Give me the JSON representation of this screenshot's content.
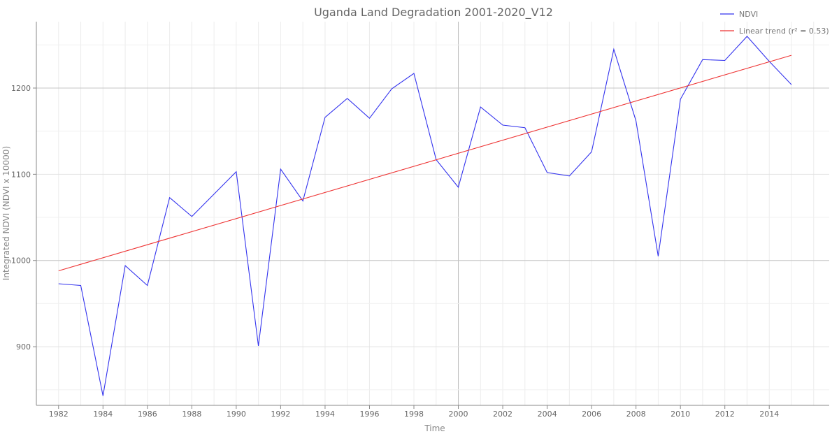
{
  "chart_data": {
    "type": "line",
    "title": "Uganda Land Degradation 2001-2020_V12",
    "xlabel": "Time",
    "ylabel": "Integrated NDVI (NDVI x 10000)",
    "xlim": [
      1981,
      2016.7
    ],
    "ylim": [
      832,
      1277
    ],
    "x_ticks": [
      1982,
      1984,
      1986,
      1988,
      1990,
      1992,
      1994,
      1996,
      1998,
      2000,
      2002,
      2004,
      2006,
      2008,
      2010,
      2012,
      2014
    ],
    "y_ticks": [
      900,
      1000,
      1100,
      1200
    ],
    "grid": true,
    "legend_position": "top-right",
    "series": [
      {
        "name": "NDVI",
        "color": "#3333ee",
        "x": [
          1982,
          1983,
          1984,
          1985,
          1986,
          1987,
          1988,
          1989,
          1990,
          1991,
          1992,
          1993,
          1994,
          1995,
          1996,
          1997,
          1998,
          1999,
          2000,
          2001,
          2002,
          2003,
          2004,
          2005,
          2006,
          2007,
          2008,
          2009,
          2010,
          2011,
          2012,
          2013,
          2014,
          2015
        ],
        "values": [
          973,
          971,
          843,
          994,
          971,
          1073,
          1051,
          1077,
          1103,
          901,
          1106,
          1069,
          1166,
          1188,
          1165,
          1199,
          1217,
          1117,
          1085,
          1178,
          1157,
          1154,
          1102,
          1098,
          1126,
          1245,
          1162,
          1005,
          1187,
          1233,
          1232,
          1260,
          1231,
          1204
        ]
      },
      {
        "name": "Linear trend (r² = 0.53)",
        "color": "#ee3333",
        "x": [
          1982,
          2015
        ],
        "values": [
          988,
          1238
        ]
      }
    ]
  }
}
